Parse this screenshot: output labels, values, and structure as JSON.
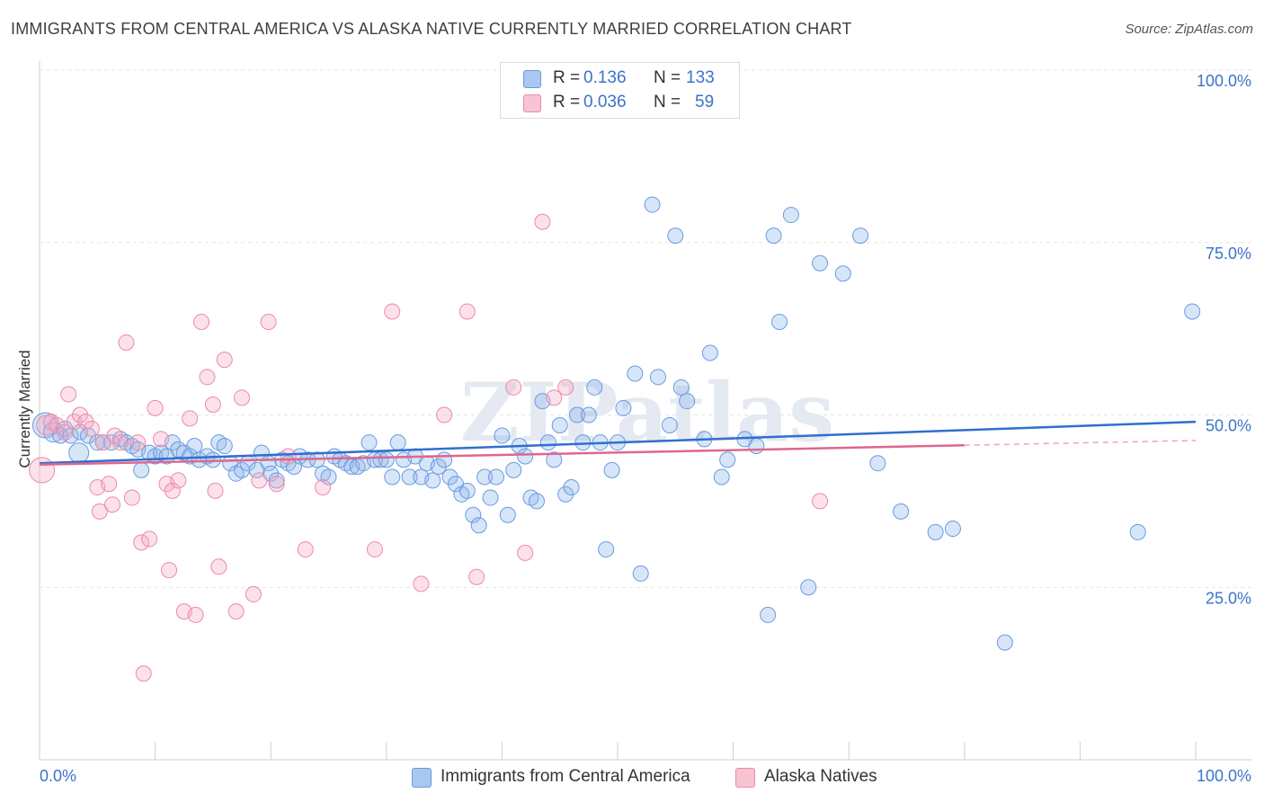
{
  "title": "IMMIGRANTS FROM CENTRAL AMERICA VS ALASKA NATIVE CURRENTLY MARRIED CORRELATION CHART",
  "source": "Source: ZipAtlas.com",
  "watermark": "ZIPatlas",
  "legend": {
    "rows": [
      {
        "r_label": "R =",
        "r_value": "0.136",
        "n_label": "N =",
        "n_value": "133",
        "color": "#a9c8f0",
        "border": "#6a9be0"
      },
      {
        "r_label": "R =",
        "r_value": "0.036",
        "n_label": "N =",
        "n_value": "59",
        "color": "#f8c3d3",
        "border": "#ec8aa7"
      }
    ]
  },
  "bottom_legend": [
    {
      "label": "Immigrants from Central America",
      "color": "#a9c8f0",
      "border": "#6a9be0"
    },
    {
      "label": "Alaska Natives",
      "color": "#f8c3d3",
      "border": "#ec8aa7"
    }
  ],
  "chart_data": {
    "type": "scatter",
    "ylabel": "Currently Married",
    "xlabel": "",
    "xlim": [
      0,
      100
    ],
    "ylim": [
      0,
      100
    ],
    "x_tick_labels": [
      "0.0%",
      "100.0%"
    ],
    "y_tick_labels": [
      "100.0%",
      "75.0%",
      "50.0%",
      "25.0%"
    ],
    "y_ticks": [
      100,
      75,
      50,
      25
    ],
    "grid": true,
    "series": [
      {
        "name": "Immigrants from Central America",
        "color": "#6a9be0",
        "fill": "rgba(140,180,235,0.35)",
        "trend": {
          "x": [
            0,
            100
          ],
          "y": [
            43.0,
            49.0
          ],
          "color": "#2f6fd0"
        },
        "points": [
          [
            0.5,
            48.5
          ],
          [
            1.2,
            47.5
          ],
          [
            1.8,
            47
          ],
          [
            2.2,
            48
          ],
          [
            2.7,
            47
          ],
          [
            3.5,
            47.5
          ],
          [
            4.2,
            47
          ],
          [
            5,
            46
          ],
          [
            5.5,
            46
          ],
          [
            6.2,
            46
          ],
          [
            7,
            46.5
          ],
          [
            7.5,
            46
          ],
          [
            8,
            45.5
          ],
          [
            8.5,
            45
          ],
          [
            3.4,
            44.5
          ],
          [
            8.8,
            42
          ],
          [
            9.5,
            44.5
          ],
          [
            10,
            44
          ],
          [
            10.5,
            44.5
          ],
          [
            11,
            44
          ],
          [
            11.5,
            46
          ],
          [
            12,
            45
          ],
          [
            12.5,
            44.5
          ],
          [
            13,
            44
          ],
          [
            13.4,
            45.5
          ],
          [
            13.8,
            43.5
          ],
          [
            14.5,
            44
          ],
          [
            15,
            43.5
          ],
          [
            15.5,
            46
          ],
          [
            16,
            45.5
          ],
          [
            16.5,
            43
          ],
          [
            17,
            41.5
          ],
          [
            17.5,
            42
          ],
          [
            18,
            43
          ],
          [
            18.8,
            42
          ],
          [
            19.2,
            44.5
          ],
          [
            19.8,
            43
          ],
          [
            20,
            41.5
          ],
          [
            20.5,
            40.5
          ],
          [
            21,
            43.5
          ],
          [
            21.5,
            43
          ],
          [
            22,
            42.5
          ],
          [
            22.5,
            44
          ],
          [
            23.2,
            43.5
          ],
          [
            24,
            43.5
          ],
          [
            24.5,
            41.5
          ],
          [
            25,
            41
          ],
          [
            25.5,
            44
          ],
          [
            26,
            43.5
          ],
          [
            26.5,
            43
          ],
          [
            27,
            42.5
          ],
          [
            27.5,
            42.5
          ],
          [
            28,
            43
          ],
          [
            28.5,
            46
          ],
          [
            29,
            43.5
          ],
          [
            29.5,
            43.5
          ],
          [
            30,
            43.5
          ],
          [
            30.5,
            41
          ],
          [
            31,
            46
          ],
          [
            31.5,
            43.5
          ],
          [
            32,
            41
          ],
          [
            32.5,
            44
          ],
          [
            33,
            41
          ],
          [
            33.5,
            43
          ],
          [
            34,
            40.5
          ],
          [
            34.5,
            42.5
          ],
          [
            35,
            43.5
          ],
          [
            35.5,
            41
          ],
          [
            36,
            40
          ],
          [
            36.5,
            38.5
          ],
          [
            37,
            39
          ],
          [
            37.5,
            35.5
          ],
          [
            38,
            34
          ],
          [
            38.5,
            41
          ],
          [
            39,
            38
          ],
          [
            39.5,
            41
          ],
          [
            40,
            47
          ],
          [
            40.5,
            35.5
          ],
          [
            41,
            42
          ],
          [
            41.5,
            45.5
          ],
          [
            42,
            44
          ],
          [
            42.5,
            38
          ],
          [
            43,
            37.5
          ],
          [
            43.5,
            52
          ],
          [
            44,
            46
          ],
          [
            44.5,
            43.5
          ],
          [
            45,
            48.5
          ],
          [
            45.5,
            38.5
          ],
          [
            46,
            39.5
          ],
          [
            46.5,
            50
          ],
          [
            47,
            46
          ],
          [
            47.5,
            50
          ],
          [
            48,
            54
          ],
          [
            48.5,
            46
          ],
          [
            49,
            30.5
          ],
          [
            49.5,
            42
          ],
          [
            50,
            46
          ],
          [
            50.5,
            51
          ],
          [
            51.5,
            56
          ],
          [
            52,
            27
          ],
          [
            53,
            80.5
          ],
          [
            53.5,
            55.5
          ],
          [
            54.5,
            48.5
          ],
          [
            55,
            76
          ],
          [
            55.5,
            54
          ],
          [
            56,
            52
          ],
          [
            57.5,
            46.5
          ],
          [
            58,
            59
          ],
          [
            59,
            41
          ],
          [
            59.5,
            43.5
          ],
          [
            61,
            46.5
          ],
          [
            62,
            45.5
          ],
          [
            63.5,
            76
          ],
          [
            63,
            21
          ],
          [
            64,
            63.5
          ],
          [
            65,
            79
          ],
          [
            66.5,
            25
          ],
          [
            67.5,
            72
          ],
          [
            69.5,
            70.5
          ],
          [
            71,
            76
          ],
          [
            72.5,
            43
          ],
          [
            74.5,
            36
          ],
          [
            77.5,
            33
          ],
          [
            79,
            33.5
          ],
          [
            83.5,
            17
          ],
          [
            95,
            33
          ],
          [
            99.7,
            65
          ]
        ]
      },
      {
        "name": "Alaska Natives",
        "color": "#ec8aa7",
        "fill": "rgba(245,170,195,0.35)",
        "trend": {
          "x": [
            0,
            80
          ],
          "y": [
            42.8,
            45.6
          ],
          "color": "#e0668d",
          "dashed_to": [
            100,
            46.3
          ]
        },
        "points": [
          [
            0.2,
            42
          ],
          [
            0.6,
            48.5
          ],
          [
            1,
            49
          ],
          [
            1.5,
            48.5
          ],
          [
            2.2,
            47.5
          ],
          [
            2.5,
            53
          ],
          [
            3,
            49
          ],
          [
            3.5,
            50
          ],
          [
            4,
            49
          ],
          [
            4.5,
            48
          ],
          [
            5,
            39.5
          ],
          [
            5.2,
            36
          ],
          [
            5.5,
            46
          ],
          [
            6,
            40
          ],
          [
            6.3,
            37
          ],
          [
            6.5,
            47
          ],
          [
            7,
            46
          ],
          [
            7.5,
            60.5
          ],
          [
            8,
            38
          ],
          [
            8.5,
            46
          ],
          [
            8.8,
            31.5
          ],
          [
            9,
            12.5
          ],
          [
            9.5,
            32
          ],
          [
            10,
            51
          ],
          [
            10.5,
            46.5
          ],
          [
            11,
            40
          ],
          [
            11.2,
            27.5
          ],
          [
            11.5,
            39
          ],
          [
            12,
            40.5
          ],
          [
            12.5,
            21.5
          ],
          [
            13,
            49.5
          ],
          [
            13.5,
            21
          ],
          [
            14,
            63.5
          ],
          [
            14.5,
            55.5
          ],
          [
            15,
            51.5
          ],
          [
            15.2,
            39
          ],
          [
            15.5,
            28
          ],
          [
            16,
            58
          ],
          [
            17,
            21.5
          ],
          [
            17.5,
            52.5
          ],
          [
            18.5,
            24
          ],
          [
            19,
            40.5
          ],
          [
            19.8,
            63.5
          ],
          [
            20.5,
            40
          ],
          [
            21.5,
            44
          ],
          [
            23,
            30.5
          ],
          [
            24.5,
            39.5
          ],
          [
            29,
            30.5
          ],
          [
            30.5,
            65
          ],
          [
            33,
            25.5
          ],
          [
            35,
            50
          ],
          [
            37,
            65
          ],
          [
            37.8,
            26.5
          ],
          [
            41,
            54
          ],
          [
            42,
            30
          ],
          [
            43.5,
            78
          ],
          [
            44.5,
            52.5
          ],
          [
            45.5,
            54
          ],
          [
            67.5,
            37.5
          ]
        ]
      }
    ]
  }
}
